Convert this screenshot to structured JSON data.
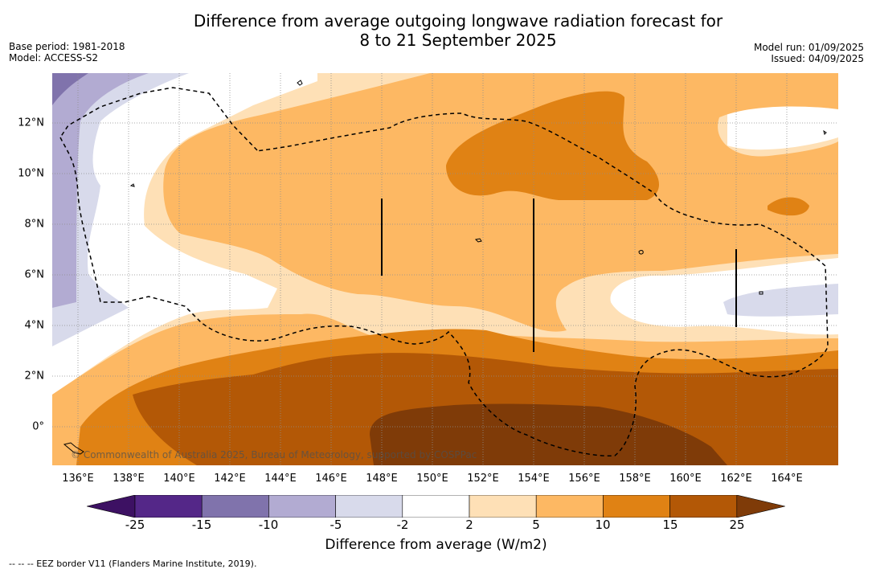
{
  "title": {
    "line1": "Difference from average outgoing longwave radiation forecast for",
    "line2": "8 to 21 September 2025"
  },
  "meta": {
    "base_period": "Base period: 1981-2018",
    "model": "Model: ACCESS-S2",
    "model_run": "Model run: 01/09/2025",
    "issued": "Issued: 04/09/2025"
  },
  "map": {
    "lat_labels": [
      "12°N",
      "10°N",
      "8°N",
      "6°N",
      "4°N",
      "2°N",
      "0°"
    ],
    "lon_labels": [
      "136°E",
      "138°E",
      "140°E",
      "142°E",
      "144°E",
      "146°E",
      "148°E",
      "150°E",
      "152°E",
      "154°E",
      "156°E",
      "158°E",
      "160°E",
      "162°E",
      "164°E"
    ],
    "copyright": "© Commonwealth of Australia 2025, Bureau of Meteorology, supported by COSPPac",
    "eez_style": "dashed black",
    "graticule": "dotted grey"
  },
  "colorbar": {
    "ticks": [
      "-25",
      "-15",
      "-10",
      "-5",
      "-2",
      "2",
      "5",
      "10",
      "15",
      "25"
    ],
    "colors": [
      "#3d1163",
      "#542788",
      "#8073ac",
      "#b2abd2",
      "#d8daeb",
      "#ffffff",
      "#fee0b6",
      "#fdb863",
      "#e08214",
      "#b35806",
      "#7f3b08"
    ],
    "label": "Difference from average (W/m2)"
  },
  "footnote": "--  --  -- EEZ border V11 (Flanders Marine Institute, 2019)."
}
